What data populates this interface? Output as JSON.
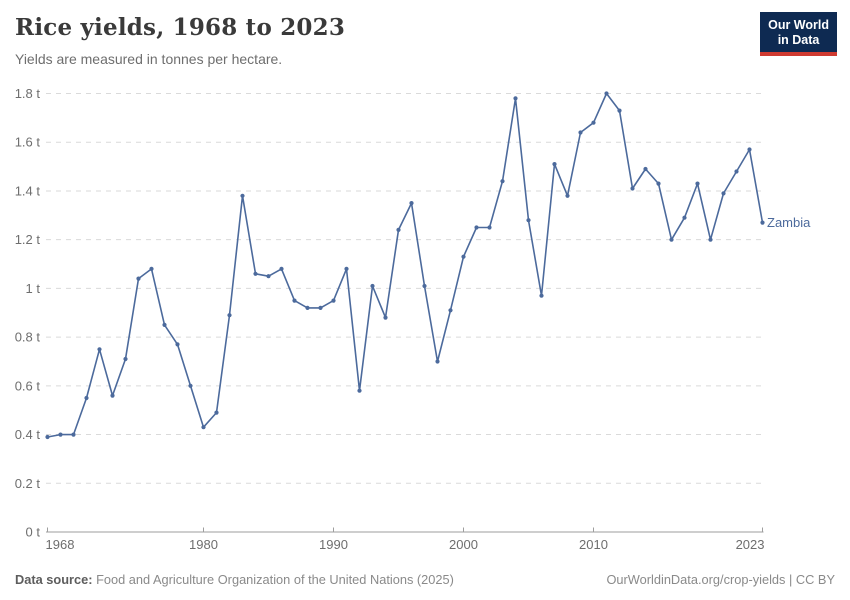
{
  "header": {
    "title": "Rice yields, 1968 to 2023",
    "subtitle": "Yields are measured in tonnes per hectare."
  },
  "logo": {
    "line1": "Our World",
    "line2": "in Data",
    "bg_color": "#0e2a52",
    "accent_color": "#cf3a30"
  },
  "chart_data": {
    "type": "line",
    "title": "Rice yields, 1968 to 2023",
    "ylabel": "tonnes per hectare",
    "unit_suffix": " t",
    "xlim": [
      1968,
      2023
    ],
    "ylim": [
      0,
      1.8
    ],
    "x_ticks": [
      1968,
      1980,
      1990,
      2000,
      2010,
      2023
    ],
    "y_ticks": [
      0,
      0.2,
      0.4,
      0.6,
      0.8,
      1,
      1.2,
      1.4,
      1.6,
      1.8
    ],
    "grid": "horizontal-dashed",
    "legend_position": "end-of-line",
    "axis_color": "#9e9e9e",
    "grid_color": "#dadada",
    "tick_label_color": "#6e6e6e",
    "series": [
      {
        "name": "Zambia",
        "color": "#4C6A9C",
        "x": [
          1968,
          1969,
          1970,
          1971,
          1972,
          1973,
          1974,
          1975,
          1976,
          1977,
          1978,
          1979,
          1980,
          1981,
          1982,
          1983,
          1984,
          1985,
          1986,
          1987,
          1988,
          1989,
          1990,
          1991,
          1992,
          1993,
          1994,
          1995,
          1996,
          1997,
          1998,
          1999,
          2000,
          2001,
          2002,
          2003,
          2004,
          2005,
          2006,
          2007,
          2008,
          2009,
          2010,
          2011,
          2012,
          2013,
          2014,
          2015,
          2016,
          2017,
          2018,
          2019,
          2020,
          2021,
          2022,
          2023
        ],
        "values": [
          0.39,
          0.4,
          0.4,
          0.55,
          0.75,
          0.56,
          0.71,
          1.04,
          1.08,
          0.85,
          0.77,
          0.6,
          0.43,
          0.49,
          0.89,
          1.38,
          1.06,
          1.05,
          1.08,
          0.95,
          0.92,
          0.92,
          0.95,
          1.08,
          0.58,
          1.01,
          0.88,
          1.24,
          1.35,
          1.01,
          0.7,
          0.91,
          1.13,
          1.25,
          1.25,
          1.44,
          1.78,
          1.28,
          0.97,
          1.51,
          1.38,
          1.64,
          1.68,
          1.8,
          1.73,
          1.41,
          1.49,
          1.43,
          1.2,
          1.29,
          1.43,
          1.2,
          1.39,
          1.48,
          1.57,
          1.27
        ]
      }
    ]
  },
  "footer": {
    "datasource_label": "Data source:",
    "datasource_text": " Food and Agriculture Organization of the United Nations (2025)",
    "credit": "OurWorldinData.org/crop-yields | CC BY"
  }
}
